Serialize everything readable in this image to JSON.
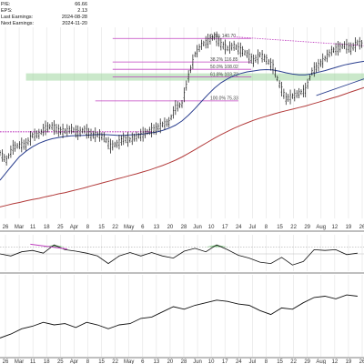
{
  "info": [
    {
      "label": "P/E:",
      "value": "66.66"
    },
    {
      "label": "EPS:",
      "value": "2.13"
    },
    {
      "label": "Last Earnings:",
      "value": "2024-08-28"
    },
    {
      "label": "Next Earnings:",
      "value": "2024-11-20"
    }
  ],
  "colors": {
    "price": "#111111",
    "ma_short": "#2b3f8f",
    "ma_long": "#b23a3a",
    "fib": "#c040c0",
    "support_band": "#9fd59f",
    "indicator_fill": "#4caf50",
    "indicator_div": "#c040c0",
    "grid": "#e3e3e3"
  },
  "chart_data": [
    {
      "type": "line",
      "panel": "price",
      "x": [
        0,
        3,
        6,
        9,
        12,
        15,
        18,
        21,
        24,
        27,
        30,
        33,
        36,
        39,
        42,
        45,
        48,
        51,
        54,
        57,
        60,
        63,
        66,
        69,
        72,
        75,
        78,
        81,
        84,
        87,
        90,
        93,
        96,
        99,
        102,
        105,
        108,
        111,
        114,
        117,
        120,
        123,
        126,
        129,
        132,
        135,
        138,
        141,
        144,
        147,
        150,
        153,
        156,
        159,
        162,
        165,
        168
      ],
      "series": [
        {
          "values": [
            86.5,
            84.2,
            88.3,
            89.0,
            89.2,
            92.1,
            92.5,
            94.4,
            95.0,
            93.6,
            93.4,
            94.1,
            92.9,
            93.9,
            92.2,
            92.3,
            91.5,
            88.7,
            89.4,
            91.0,
            90.7,
            91.7,
            92.4,
            93.5,
            94.2,
            95.5,
            96.2,
            100.8,
            101.9,
            110.6,
            117.5,
            120.5,
            121.7,
            123.2,
            120.7,
            119.4,
            120.2,
            118.9,
            117.6,
            115.5,
            117.4,
            115.9,
            113.6,
            108.1,
            103.6,
            104.4,
            105.3,
            106.3,
            112.1,
            114.1,
            116.2,
            118.6,
            119.4,
            120.4,
            119.3,
            121.2,
            120.5
          ]
        },
        {
          "values": [
            78.0,
            80.5,
            83.0,
            85.4,
            87.1,
            88.5,
            89.6,
            90.4,
            91.0,
            91.4,
            91.7,
            91.9,
            92.0,
            92.1,
            92.2,
            92.3,
            92.3,
            92.2,
            92.1,
            92.1,
            92.2,
            92.3,
            92.5,
            92.8,
            93.1,
            93.6,
            94.3,
            95.3,
            96.6,
            98.4,
            100.5,
            102.7,
            104.9,
            106.9,
            108.6,
            109.8,
            110.8,
            111.5,
            112.0,
            112.3,
            112.6,
            112.7,
            112.6,
            112.2,
            111.7,
            111.3,
            111.1,
            111.1,
            111.4,
            111.9,
            112.4,
            113.0,
            113.6,
            114.2,
            114.6,
            115.0,
            115.3
          ]
        },
        {
          "values": [
            69.6,
            70.1,
            70.6,
            71.0,
            71.5,
            71.9,
            72.3,
            72.8,
            73.2,
            73.7,
            74.1,
            74.6,
            75.1,
            75.6,
            76.2,
            76.7,
            77.3,
            77.8,
            78.4,
            78.9,
            79.5,
            80.0,
            80.6,
            81.2,
            81.9,
            82.6,
            83.4,
            84.3,
            85.3,
            86.4,
            87.6,
            88.8,
            90.0,
            91.2,
            92.3,
            93.3,
            94.3,
            95.2,
            96.0,
            96.8,
            97.5,
            98.1,
            98.7,
            99.3,
            99.8,
            100.3,
            100.8,
            101.3,
            101.9,
            102.5,
            103.1,
            103.7,
            104.3,
            105.0,
            105.7,
            106.4,
            107.1
          ]
        }
      ],
      "retracement_levels": [
        {
          "label": "0.0%",
          "value": "140.70",
          "price": 122.5
        },
        {
          "label": "38.2%",
          "value": "116.85",
          "price": 115.1
        },
        {
          "label": "50.0%",
          "value": "108.02",
          "price": 112.8
        },
        {
          "label": "61.8%",
          "value": "103.72",
          "price": 110.4
        },
        {
          "label": "100.0%",
          "value": "75.33",
          "price": 102.9
        }
      ],
      "x_tick_labels": [
        "26",
        "Mar",
        "11",
        "18",
        "25",
        "Apr",
        "8",
        "15",
        "22",
        "May",
        "6",
        "13",
        "20",
        "28",
        "Jun",
        "10",
        "17",
        "24",
        "Jul",
        "8",
        "15",
        "22",
        "29",
        "Aug",
        "12",
        "19",
        "26"
      ],
      "ylim": [
        66,
        126
      ]
    },
    {
      "type": "area",
      "panel": "oscillator",
      "x": [
        0,
        5,
        10,
        15,
        20,
        25,
        30,
        35,
        40,
        45,
        50,
        55,
        60,
        65,
        70,
        75,
        80,
        85,
        90,
        95,
        100,
        105,
        110,
        115,
        120,
        125,
        130,
        135,
        140,
        145,
        150,
        155,
        160,
        165
      ],
      "values": [
        50,
        47,
        53,
        55,
        51,
        63,
        56,
        54,
        51,
        47,
        36,
        47,
        52,
        47,
        52,
        47,
        44,
        54,
        58,
        53,
        63,
        56,
        48,
        44,
        38,
        36,
        45,
        34,
        39,
        56,
        55,
        56,
        49,
        51
      ],
      "overbought": 60,
      "x_tick_labels": [
        "26",
        "Mar",
        "11",
        "18",
        "25",
        "Apr",
        "8",
        "15",
        "22",
        "May",
        "6",
        "13",
        "20",
        "28",
        "Jun",
        "10",
        "17",
        "24",
        "Jul",
        "8",
        "15",
        "22",
        "29",
        "Aug",
        "12",
        "19",
        "26"
      ],
      "ylim": [
        25,
        75
      ]
    },
    {
      "type": "line",
      "panel": "relative",
      "x": [
        0,
        5,
        10,
        15,
        20,
        25,
        30,
        35,
        40,
        45,
        50,
        55,
        60,
        65,
        70,
        75,
        80,
        85,
        90,
        95,
        100,
        105,
        110,
        115,
        120,
        125,
        130,
        135,
        140,
        145,
        150,
        155,
        160,
        165
      ],
      "values": [
        13,
        16,
        20,
        22,
        25,
        23,
        24,
        21,
        25,
        23,
        20,
        23,
        24,
        28,
        29,
        33,
        37,
        35,
        38,
        40,
        42,
        41,
        39,
        38,
        34,
        31,
        36,
        35,
        40,
        44,
        45,
        43,
        46,
        45
      ],
      "x_tick_labels": [
        "26",
        "Mar",
        "11",
        "18",
        "25",
        "Apr",
        "8",
        "15",
        "22",
        "May",
        "6",
        "13",
        "20",
        "28",
        "Jun",
        "10",
        "17",
        "24",
        "Jul",
        "8",
        "15",
        "22",
        "29",
        "Aug",
        "12",
        "19",
        "26"
      ],
      "ylim": [
        0,
        60
      ]
    }
  ]
}
